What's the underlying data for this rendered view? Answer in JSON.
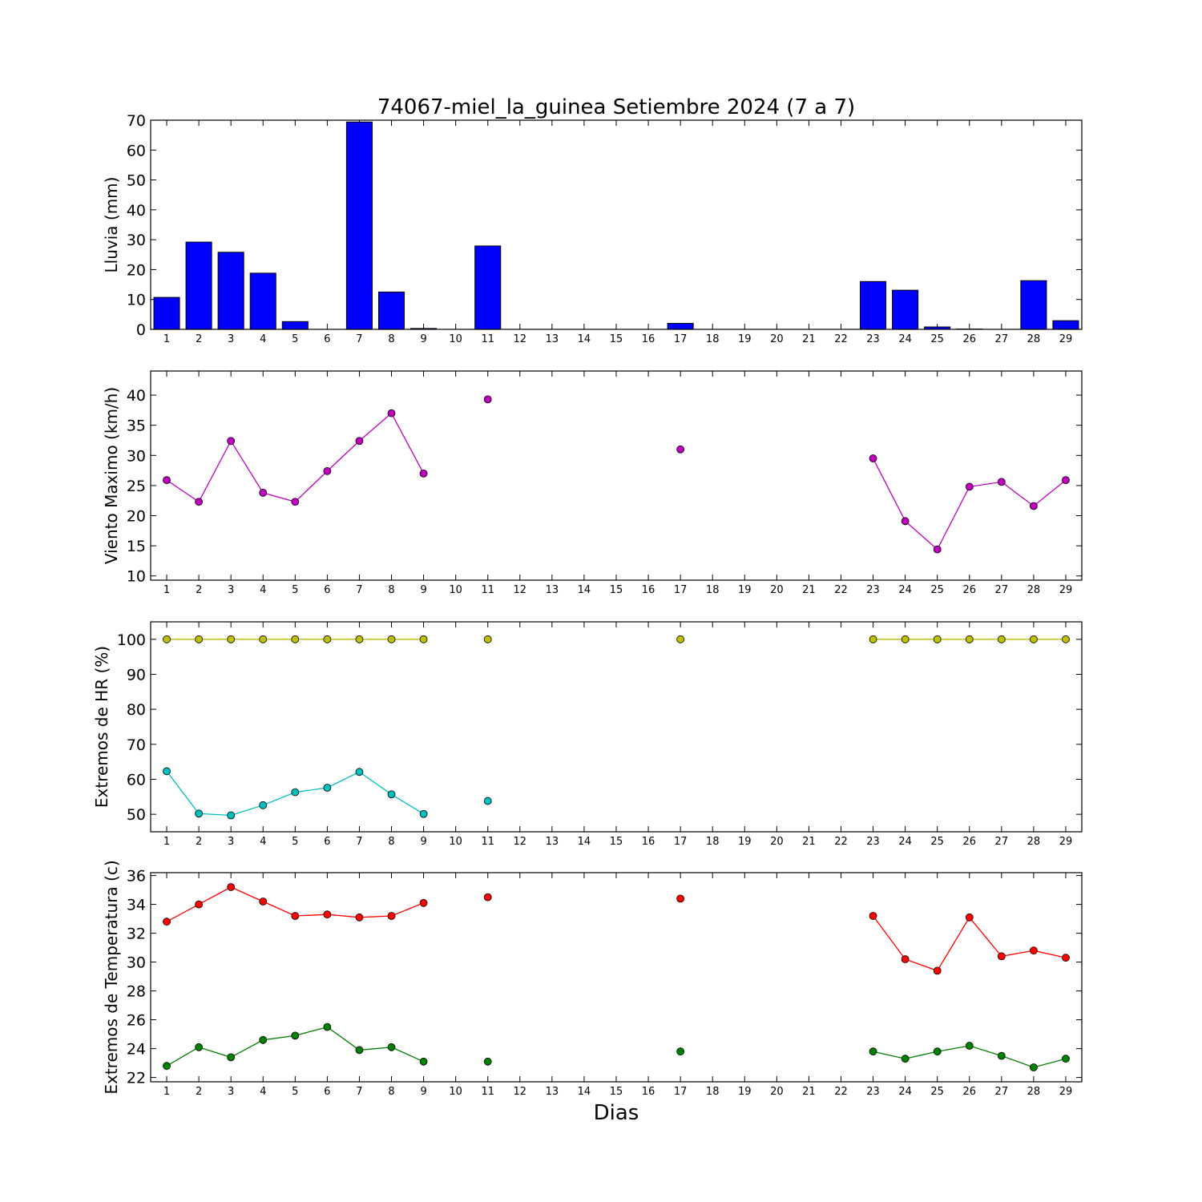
{
  "chart_data": {
    "type": "multi-panel",
    "title": "74067-miel_la_guinea Setiembre 2024  (7 a 7)",
    "xlabel": "Dias",
    "x_ticks": [
      1,
      2,
      3,
      4,
      5,
      6,
      7,
      8,
      9,
      10,
      11,
      12,
      13,
      14,
      15,
      16,
      17,
      18,
      19,
      20,
      21,
      22,
      23,
      24,
      25,
      26,
      27,
      28,
      29
    ],
    "panels": [
      {
        "type": "bar",
        "ylabel": "Lluvia (mm)",
        "ylim": [
          0,
          70
        ],
        "yticks": [
          0,
          10,
          20,
          30,
          40,
          50,
          60,
          70
        ],
        "series": [
          {
            "color": "#0000ff",
            "x": [
              1,
              2,
              3,
              4,
              5,
              6,
              7,
              8,
              9,
              10,
              11,
              12,
              13,
              14,
              15,
              16,
              17,
              18,
              19,
              20,
              21,
              22,
              23,
              24,
              25,
              26,
              27,
              28,
              29
            ],
            "values": [
              10.7,
              29.2,
              25.8,
              18.8,
              2.6,
              0,
              69.4,
              12.5,
              0.3,
              0,
              27.9,
              0,
              0,
              0,
              0,
              0,
              2.0,
              0,
              0,
              0,
              0,
              0,
              16.0,
              13.1,
              0.8,
              0.1,
              0,
              16.3,
              2.9
            ]
          }
        ]
      },
      {
        "type": "line",
        "ylabel": "Viento Maximo (km/h)",
        "ylim": [
          9.3,
          44
        ],
        "yticks": [
          10,
          15,
          20,
          25,
          30,
          35,
          40
        ],
        "series": [
          {
            "color": "#bf00bf",
            "x": [
              1,
              2,
              3,
              4,
              5,
              6,
              7,
              8,
              9,
              11,
              17,
              23,
              24,
              25,
              26,
              27,
              28,
              29
            ],
            "values": [
              25.9,
              22.3,
              32.4,
              23.8,
              22.3,
              27.4,
              32.4,
              37.0,
              27.0,
              39.3,
              31.0,
              29.5,
              19.1,
              14.4,
              24.8,
              25.6,
              21.6,
              25.9
            ]
          }
        ]
      },
      {
        "type": "line",
        "ylabel": "Extremos de HR (%)",
        "ylim": [
          45,
          105
        ],
        "yticks": [
          50,
          60,
          70,
          80,
          90,
          100
        ],
        "series": [
          {
            "color": "#bfbf00",
            "x": [
              1,
              2,
              3,
              4,
              5,
              6,
              7,
              8,
              9,
              11,
              17,
              23,
              24,
              25,
              26,
              27,
              28,
              29
            ],
            "values": [
              100,
              100,
              100,
              100,
              100,
              100,
              100,
              100,
              100,
              100,
              100,
              100,
              100,
              100,
              100,
              100,
              100,
              100
            ]
          },
          {
            "color": "#00bfbf",
            "x": [
              1,
              2,
              3,
              4,
              5,
              6,
              7,
              8,
              9,
              11
            ],
            "values": [
              62.3,
              50.2,
              49.7,
              52.6,
              56.3,
              57.6,
              62.1,
              55.7,
              50.1,
              53.8
            ]
          }
        ]
      },
      {
        "type": "line",
        "ylabel": "Extremos de Temperatura (c)",
        "ylim": [
          21.7,
          36.2
        ],
        "yticks": [
          22,
          24,
          26,
          28,
          30,
          32,
          34,
          36
        ],
        "series": [
          {
            "color": "#ff0000",
            "x": [
              1,
              2,
              3,
              4,
              5,
              6,
              7,
              8,
              9,
              11,
              17,
              23,
              24,
              25,
              26,
              27,
              28,
              29
            ],
            "values": [
              32.8,
              34.0,
              35.2,
              34.2,
              33.2,
              33.3,
              33.1,
              33.2,
              34.1,
              34.5,
              34.4,
              33.2,
              30.2,
              29.4,
              33.1,
              30.4,
              30.8,
              30.3
            ]
          },
          {
            "color": "#008000",
            "x": [
              1,
              2,
              3,
              4,
              5,
              6,
              7,
              8,
              9,
              11,
              17,
              23,
              24,
              25,
              26,
              27,
              28,
              29
            ],
            "values": [
              22.8,
              24.1,
              23.4,
              24.6,
              24.9,
              25.5,
              23.9,
              24.1,
              23.1,
              23.1,
              23.8,
              23.8,
              23.3,
              23.8,
              24.2,
              23.5,
              22.7,
              23.3
            ]
          }
        ]
      }
    ]
  }
}
